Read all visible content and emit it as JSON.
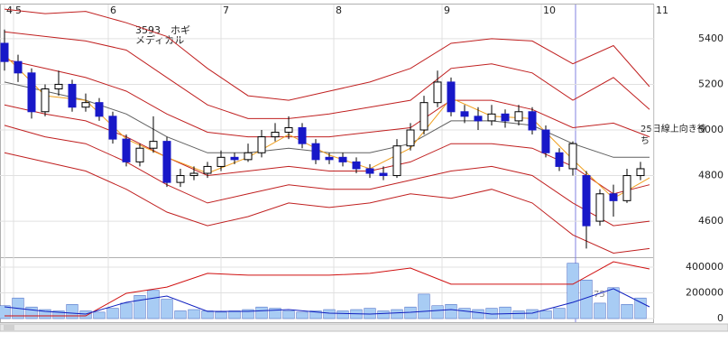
{
  "chart_data": {
    "type": "candlestick",
    "annotations": [
      "3593　ホギ",
      "メディカル",
      "25日線上向き待",
      "ち",
      "75"
    ],
    "x": [
      0,
      3,
      6,
      9,
      12,
      15,
      18,
      21,
      24,
      27,
      30,
      33,
      36,
      39,
      42,
      45,
      48,
      51,
      54,
      57,
      60,
      63,
      66,
      69,
      72,
      75,
      78,
      81,
      84,
      87,
      90,
      93,
      96,
      99,
      102,
      105,
      108,
      111,
      114,
      117,
      120,
      123,
      126,
      129,
      132,
      135,
      138,
      141
    ],
    "xlim": [
      -1,
      144
    ],
    "xticks": [
      {
        "value": 0,
        "label": "4"
      },
      {
        "value": 2,
        "label": "5"
      },
      {
        "value": 23,
        "label": "6"
      },
      {
        "value": 48,
        "label": "7"
      },
      {
        "value": 73,
        "label": "8"
      },
      {
        "value": 97,
        "label": "9"
      },
      {
        "value": 119,
        "label": "10"
      },
      {
        "value": 144,
        "label": "11"
      }
    ],
    "open": [
      5380,
      5300,
      5250,
      5080,
      5180,
      5200,
      5100,
      5120,
      5060,
      4960,
      4860,
      4920,
      4950,
      4770,
      4800,
      4810,
      4840,
      4880,
      4870,
      4900,
      4970,
      4990,
      5010,
      4940,
      4880,
      4880,
      4860,
      4830,
      4810,
      4800,
      4930,
      5000,
      5120,
      5210,
      5080,
      5060,
      5040,
      5070,
      5040,
      5080,
      5000,
      4900,
      4830,
      4800,
      4600,
      4720,
      4690,
      4800
    ],
    "high": [
      5440,
      5330,
      5270,
      5200,
      5260,
      5220,
      5160,
      5140,
      5080,
      4980,
      4940,
      5060,
      4970,
      4830,
      4840,
      4860,
      4910,
      4900,
      4940,
      5000,
      5030,
      5060,
      5030,
      4960,
      4900,
      4900,
      4880,
      4850,
      4840,
      4960,
      5030,
      5150,
      5260,
      5230,
      5110,
      5100,
      5110,
      5090,
      5110,
      5100,
      5020,
      4920,
      4950,
      4820,
      4740,
      4760,
      4830,
      4860
    ],
    "low": [
      5260,
      5210,
      5050,
      5060,
      5150,
      5080,
      5080,
      5040,
      4940,
      4840,
      4840,
      4900,
      4750,
      4750,
      4780,
      4790,
      4820,
      4850,
      4860,
      4880,
      4950,
      4960,
      4920,
      4850,
      4850,
      4840,
      4810,
      4790,
      4780,
      4790,
      4910,
      4980,
      5100,
      5060,
      5030,
      5000,
      5020,
      5010,
      5020,
      4980,
      4880,
      4820,
      4800,
      4480,
      4580,
      4620,
      4680,
      4780
    ],
    "close": [
      5300,
      5250,
      5080,
      5180,
      5200,
      5100,
      5120,
      5060,
      4960,
      4860,
      4920,
      4950,
      4770,
      4800,
      4810,
      4840,
      4880,
      4870,
      4900,
      4970,
      4990,
      5010,
      4940,
      4870,
      4870,
      4860,
      4830,
      4810,
      4800,
      4930,
      5000,
      5120,
      5210,
      5080,
      5060,
      5040,
      5070,
      5040,
      5080,
      5000,
      4900,
      4840,
      4940,
      4580,
      4720,
      4690,
      4800,
      4830
    ],
    "up_color": "#ffffff",
    "down_color": "#1818c8",
    "ylim": [
      4450,
      5550
    ],
    "yticks": [
      4600,
      4800,
      5000,
      5200,
      5400
    ],
    "line_x": [
      0,
      9,
      18,
      27,
      36,
      45,
      54,
      63,
      72,
      81,
      90,
      99,
      108,
      117,
      126,
      135,
      143
    ],
    "lines": [
      {
        "color": "#c02020",
        "values": [
          5530,
          5510,
          5520,
          5470,
          5410,
          5270,
          5150,
          5130,
          5170,
          5210,
          5270,
          5380,
          5400,
          5390,
          5290,
          5370,
          5190
        ]
      },
      {
        "color": "#c02020",
        "values": [
          5430,
          5410,
          5390,
          5350,
          5230,
          5110,
          5050,
          5050,
          5070,
          5100,
          5130,
          5270,
          5290,
          5250,
          5130,
          5230,
          5090
        ]
      },
      {
        "color": "#c02020",
        "values": [
          5310,
          5270,
          5230,
          5170,
          5070,
          4990,
          4970,
          4970,
          4970,
          4990,
          5010,
          5130,
          5130,
          5090,
          5010,
          5030,
          4970
        ]
      },
      {
        "color": "#606060",
        "values": [
          5210,
          5170,
          5130,
          5070,
          4970,
          4900,
          4900,
          4920,
          4900,
          4900,
          4940,
          5040,
          5040,
          5020,
          4940,
          4880,
          4880
        ]
      },
      {
        "color": "#c02020",
        "values": [
          5110,
          5070,
          5040,
          4970,
          4880,
          4800,
          4820,
          4840,
          4820,
          4820,
          4860,
          4940,
          4940,
          4920,
          4840,
          4720,
          4760
        ]
      },
      {
        "color": "#c02020",
        "values": [
          5020,
          4970,
          4940,
          4860,
          4760,
          4680,
          4720,
          4760,
          4740,
          4740,
          4780,
          4820,
          4840,
          4800,
          4680,
          4580,
          4600
        ]
      },
      {
        "color": "#c02020",
        "values": [
          4900,
          4860,
          4820,
          4740,
          4640,
          4580,
          4620,
          4680,
          4660,
          4680,
          4720,
          4700,
          4740,
          4680,
          4540,
          4460,
          4480
        ]
      },
      {
        "color": "#f0a020",
        "values": [
          5330,
          5150,
          5130,
          4960,
          4880,
          4810,
          4880,
          4980,
          4890,
          4830,
          4920,
          5140,
          5060,
          5050,
          4870,
          4700,
          4790
        ]
      }
    ],
    "volume": {
      "color": "#a8ccf4",
      "ylim": [
        0,
        460000
      ],
      "yticks": [
        0,
        200000,
        400000
      ],
      "values": [
        100000,
        160000,
        90000,
        70000,
        60000,
        110000,
        60000,
        50000,
        80000,
        120000,
        180000,
        220000,
        150000,
        60000,
        70000,
        60000,
        50000,
        60000,
        70000,
        90000,
        80000,
        60000,
        50000,
        60000,
        70000,
        60000,
        70000,
        80000,
        60000,
        70000,
        90000,
        190000,
        100000,
        110000,
        80000,
        70000,
        80000,
        90000,
        60000,
        70000,
        60000,
        80000,
        430000,
        300000,
        120000,
        240000,
        110000,
        160000
      ],
      "lines": [
        {
          "color": "#d01010",
          "values": [
            21000,
            21000,
            21000,
            196000,
            245000,
            351000,
            337000,
            337000,
            337000,
            351000,
            393000,
            267000,
            267000,
            267000,
            267000,
            442000,
            386000
          ]
        },
        {
          "color": "#1020c0",
          "values": [
            91000,
            56000,
            35000,
            126000,
            175000,
            56000,
            56000,
            70000,
            42000,
            35000,
            49000,
            70000,
            35000,
            42000,
            126000,
            232000,
            91000
          ]
        }
      ]
    }
  }
}
